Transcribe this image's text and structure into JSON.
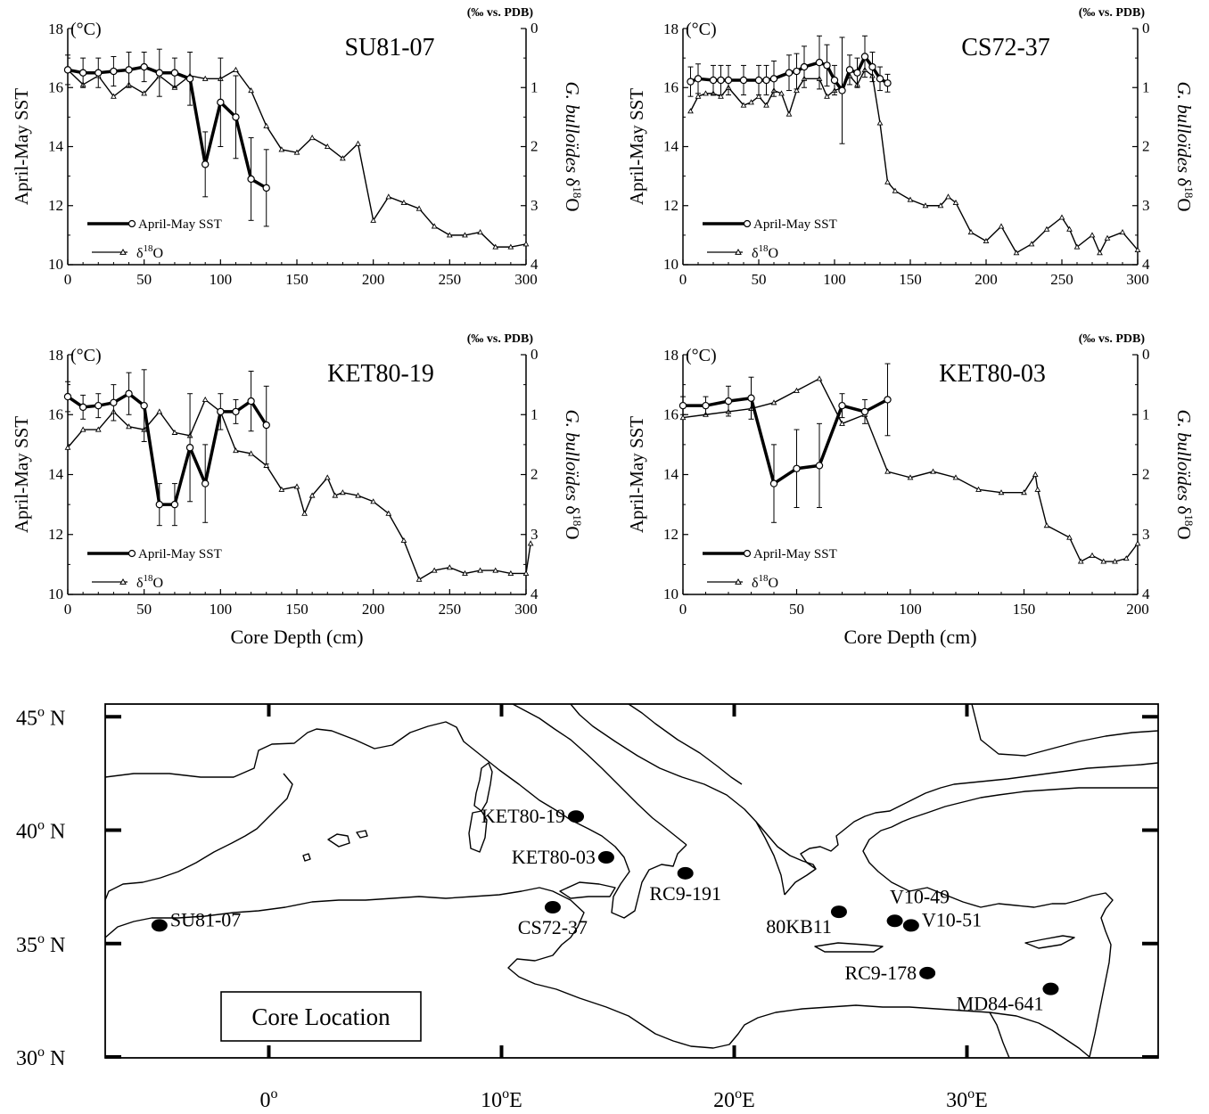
{
  "chart_data": [
    {
      "type": "line",
      "title": "SU81-07",
      "xlabel": "",
      "ylabel": "April-May SST",
      "ylabel_unit": "(°C)",
      "y2label": "G. bulloïdes δ18O",
      "y2label_unit": "(‰ vs. PDB)",
      "xlim": [
        0,
        300
      ],
      "ylim": [
        10,
        18
      ],
      "y2lim": [
        0,
        4
      ],
      "y2_inverted": true,
      "xticks": [
        0,
        50,
        100,
        150,
        200,
        250,
        300
      ],
      "yticks": [
        10,
        12,
        14,
        16,
        18
      ],
      "y2ticks": [
        0,
        1,
        2,
        3,
        4
      ],
      "legend": {
        "position": "bottom-left",
        "sst_label": "April-May SST",
        "d18o_label": "δ18O"
      },
      "series": [
        {
          "name": "April-May SST",
          "axis": "left",
          "marker": "circle",
          "x": [
            0,
            10,
            20,
            30,
            40,
            50,
            60,
            70,
            80,
            90,
            100,
            110,
            120,
            130
          ],
          "y": [
            16.6,
            16.5,
            16.5,
            16.55,
            16.6,
            16.7,
            16.5,
            16.5,
            16.3,
            13.4,
            15.5,
            15.0,
            12.9,
            12.6
          ],
          "err": [
            0.5,
            0.5,
            0.5,
            0.5,
            0.6,
            0.5,
            0.8,
            0.5,
            0.9,
            1.1,
            1.5,
            1.4,
            1.4,
            1.3
          ]
        },
        {
          "name": "δ18O",
          "axis": "right",
          "marker": "triangle",
          "x": [
            0,
            10,
            20,
            30,
            40,
            50,
            60,
            70,
            80,
            90,
            100,
            110,
            120,
            130,
            140,
            150,
            160,
            170,
            180,
            190,
            200,
            210,
            220,
            230,
            240,
            250,
            260,
            270,
            280,
            290,
            300
          ],
          "y": [
            0.7,
            0.95,
            0.8,
            1.15,
            0.95,
            1.1,
            0.8,
            1.0,
            0.8,
            0.85,
            0.85,
            0.7,
            1.05,
            1.65,
            2.05,
            2.1,
            1.85,
            2.0,
            2.2,
            1.95,
            3.25,
            2.85,
            2.95,
            3.05,
            3.35,
            3.5,
            3.5,
            3.45,
            3.7,
            3.7,
            3.65
          ]
        }
      ]
    },
    {
      "type": "line",
      "title": "CS72-37",
      "xlabel": "",
      "ylabel": "April-May SST",
      "ylabel_unit": "(°C)",
      "y2label": "G. bulloïdes δ18O",
      "y2label_unit": "(‰ vs. PDB)",
      "xlim": [
        0,
        300
      ],
      "ylim": [
        10,
        18
      ],
      "y2lim": [
        0,
        4
      ],
      "y2_inverted": true,
      "xticks": [
        0,
        50,
        100,
        150,
        200,
        250,
        300
      ],
      "yticks": [
        10,
        12,
        14,
        16,
        18
      ],
      "y2ticks": [
        0,
        1,
        2,
        3,
        4
      ],
      "legend": {
        "position": "bottom-left",
        "sst_label": "April-May SST",
        "d18o_label": "δ18O"
      },
      "series": [
        {
          "name": "April-May SST",
          "axis": "left",
          "marker": "circle",
          "x": [
            5,
            10,
            20,
            25,
            30,
            40,
            50,
            55,
            60,
            70,
            75,
            80,
            90,
            95,
            100,
            105,
            110,
            115,
            120,
            125,
            130,
            135
          ],
          "y": [
            16.2,
            16.3,
            16.25,
            16.25,
            16.25,
            16.25,
            16.25,
            16.25,
            16.3,
            16.5,
            16.55,
            16.7,
            16.85,
            16.75,
            16.25,
            15.9,
            16.6,
            16.5,
            17.05,
            16.7,
            16.3,
            16.15
          ],
          "err": [
            0.5,
            0.5,
            0.5,
            0.5,
            0.5,
            0.5,
            0.5,
            0.5,
            0.6,
            0.6,
            0.6,
            0.7,
            0.9,
            0.7,
            0.5,
            1.8,
            0.5,
            0.5,
            0.7,
            0.5,
            0.4,
            0.3
          ]
        },
        {
          "name": "δ18O",
          "axis": "right",
          "marker": "triangle",
          "x": [
            5,
            10,
            15,
            20,
            25,
            30,
            40,
            45,
            50,
            55,
            60,
            65,
            70,
            75,
            80,
            90,
            95,
            100,
            105,
            110,
            115,
            120,
            125,
            130,
            135,
            140,
            150,
            160,
            170,
            175,
            180,
            190,
            200,
            210,
            220,
            230,
            240,
            250,
            255,
            260,
            270,
            275,
            280,
            290,
            300
          ],
          "y": [
            1.4,
            1.15,
            1.1,
            1.1,
            1.15,
            1.0,
            1.3,
            1.25,
            1.15,
            1.3,
            1.05,
            1.1,
            1.45,
            1.05,
            0.85,
            0.85,
            1.15,
            1.05,
            1.0,
            0.8,
            0.95,
            0.7,
            0.8,
            1.6,
            2.6,
            2.75,
            2.9,
            3.0,
            3.0,
            2.85,
            2.95,
            3.45,
            3.6,
            3.35,
            3.8,
            3.65,
            3.4,
            3.2,
            3.4,
            3.7,
            3.5,
            3.8,
            3.55,
            3.45,
            3.75
          ]
        }
      ]
    },
    {
      "type": "line",
      "title": "KET80-19",
      "xlabel": "Core Depth (cm)",
      "ylabel": "April-May SST",
      "ylabel_unit": "(°C)",
      "y2label": "G. bulloïdes δ18O",
      "y2label_unit": "(‰ vs. PDB)",
      "xlim": [
        0,
        300
      ],
      "ylim": [
        10,
        18
      ],
      "y2lim": [
        0,
        4
      ],
      "y2_inverted": true,
      "xticks": [
        0,
        50,
        100,
        150,
        200,
        250,
        300
      ],
      "yticks": [
        10,
        12,
        14,
        16,
        18
      ],
      "y2ticks": [
        0,
        1,
        2,
        3,
        4
      ],
      "legend": {
        "position": "bottom-left",
        "sst_label": "April-May SST",
        "d18o_label": "δ18O"
      },
      "series": [
        {
          "name": "April-May SST",
          "axis": "left",
          "marker": "circle",
          "x": [
            0,
            10,
            20,
            30,
            40,
            50,
            60,
            70,
            80,
            90,
            100,
            110,
            120,
            130
          ],
          "y": [
            16.6,
            16.25,
            16.3,
            16.4,
            16.7,
            16.3,
            13.0,
            13.0,
            14.9,
            13.7,
            16.1,
            16.1,
            16.45,
            15.65
          ],
          "err": [
            0.5,
            0.4,
            0.4,
            0.6,
            0.7,
            1.2,
            0.7,
            0.7,
            1.8,
            1.3,
            0.6,
            0.4,
            1.0,
            1.3
          ]
        },
        {
          "name": "δ18O",
          "axis": "right",
          "marker": "triangle",
          "x": [
            0,
            10,
            20,
            30,
            40,
            50,
            60,
            70,
            80,
            90,
            100,
            110,
            120,
            130,
            140,
            150,
            155,
            160,
            170,
            175,
            180,
            190,
            200,
            210,
            220,
            230,
            240,
            250,
            260,
            270,
            280,
            290,
            300,
            303
          ],
          "y": [
            1.55,
            1.25,
            1.25,
            0.95,
            1.2,
            1.25,
            0.95,
            1.3,
            1.35,
            0.75,
            0.95,
            1.6,
            1.65,
            1.85,
            2.25,
            2.2,
            2.65,
            2.35,
            2.05,
            2.35,
            2.3,
            2.35,
            2.45,
            2.65,
            3.1,
            3.75,
            3.6,
            3.55,
            3.65,
            3.6,
            3.6,
            3.65,
            3.65,
            3.15
          ]
        }
      ]
    },
    {
      "type": "line",
      "title": "KET80-03",
      "xlabel": "Core Depth (cm)",
      "ylabel": "April-May SST",
      "ylabel_unit": "(°C)",
      "y2label": "G. bulloïdes δ18O",
      "y2label_unit": "(‰ vs. PDB)",
      "xlim": [
        0,
        200
      ],
      "ylim": [
        10,
        18
      ],
      "y2lim": [
        0,
        4
      ],
      "y2_inverted": true,
      "xticks": [
        0,
        50,
        100,
        150,
        200
      ],
      "yticks": [
        10,
        12,
        14,
        16,
        18
      ],
      "y2ticks": [
        0,
        1,
        2,
        3,
        4
      ],
      "legend": {
        "position": "bottom-left",
        "sst_label": "April-May SST",
        "d18o_label": "δ18O"
      },
      "series": [
        {
          "name": "April-May SST",
          "axis": "left",
          "marker": "circle",
          "x": [
            0,
            10,
            20,
            30,
            40,
            50,
            60,
            70,
            80,
            90
          ],
          "y": [
            16.3,
            16.3,
            16.45,
            16.55,
            13.7,
            14.2,
            14.3,
            16.3,
            16.1,
            16.5
          ],
          "err": [
            0.3,
            0.3,
            0.5,
            0.7,
            1.3,
            1.3,
            1.4,
            0.4,
            0.4,
            1.2
          ]
        },
        {
          "name": "δ18O",
          "axis": "right",
          "marker": "triangle",
          "x": [
            0,
            10,
            20,
            30,
            40,
            50,
            60,
            70,
            80,
            90,
            100,
            110,
            120,
            130,
            140,
            150,
            155,
            156,
            160,
            170,
            175,
            180,
            185,
            190,
            195,
            200
          ],
          "y": [
            1.05,
            1.0,
            0.95,
            0.9,
            0.8,
            0.6,
            0.4,
            1.15,
            1.0,
            1.95,
            2.05,
            1.95,
            2.05,
            2.25,
            2.3,
            2.3,
            2.0,
            2.25,
            2.85,
            3.05,
            3.45,
            3.35,
            3.45,
            3.45,
            3.4,
            3.15
          ]
        }
      ]
    }
  ],
  "map": {
    "title": "Core Location",
    "lon_labels": [
      "0",
      "10",
      "20",
      "30"
    ],
    "lon_suffix": "E",
    "lat_labels": [
      "45",
      "40",
      "35",
      "30"
    ],
    "lat_suffix": "N",
    "degree_sign": "o",
    "cores": [
      {
        "name": "SU81-07",
        "lon": -4.7,
        "lat": 35.8,
        "label_side": "right"
      },
      {
        "name": "KET80-19",
        "lon": 13.2,
        "lat": 40.6,
        "label_side": "left"
      },
      {
        "name": "KET80-03",
        "lon": 14.5,
        "lat": 38.8,
        "label_side": "left"
      },
      {
        "name": "RC9-191",
        "lon": 17.9,
        "lat": 38.1,
        "label_side": "below"
      },
      {
        "name": "CS72-37",
        "lon": 12.2,
        "lat": 36.6,
        "label_side": "below"
      },
      {
        "name": "80KB11",
        "lon": 24.5,
        "lat": 36.4,
        "label_side": "below-left"
      },
      {
        "name": "V10-49",
        "lon": 26.9,
        "lat": 36.0,
        "label_side": "above"
      },
      {
        "name": "V10-51",
        "lon": 27.6,
        "lat": 35.8,
        "label_side": "right"
      },
      {
        "name": "RC9-178",
        "lon": 28.3,
        "lat": 33.7,
        "label_side": "left"
      },
      {
        "name": "MD84-641",
        "lon": 33.6,
        "lat": 33.0,
        "label_side": "below-left"
      }
    ]
  }
}
